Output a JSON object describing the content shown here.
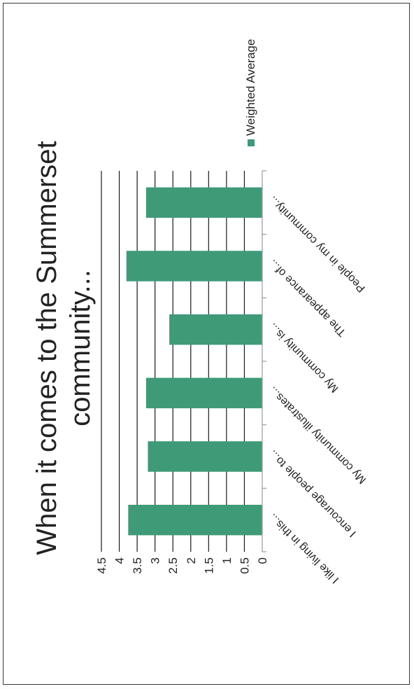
{
  "chart_data": {
    "type": "bar",
    "title_lines": [
      "When it comes to the Summerset",
      "community..."
    ],
    "categories": [
      "I like living in this...",
      "I encourage people to...",
      "My community illustrates...",
      "My community is...",
      "The appearance of...",
      "People in my community..."
    ],
    "series": [
      {
        "name": "Weighted Average",
        "values": [
          3.75,
          3.2,
          3.25,
          2.6,
          3.8,
          3.25
        ]
      }
    ],
    "ylim": [
      0,
      4.5
    ],
    "yticks": [
      "0",
      "0.5",
      "1",
      "1.5",
      "2",
      "2.5",
      "3",
      "3.5",
      "4",
      "4.5"
    ],
    "grid": true,
    "legend_position": "right",
    "colors": {
      "bar": "#3f9a78",
      "grid": "#1a1a1a",
      "axis": "#9a9a9a"
    }
  }
}
